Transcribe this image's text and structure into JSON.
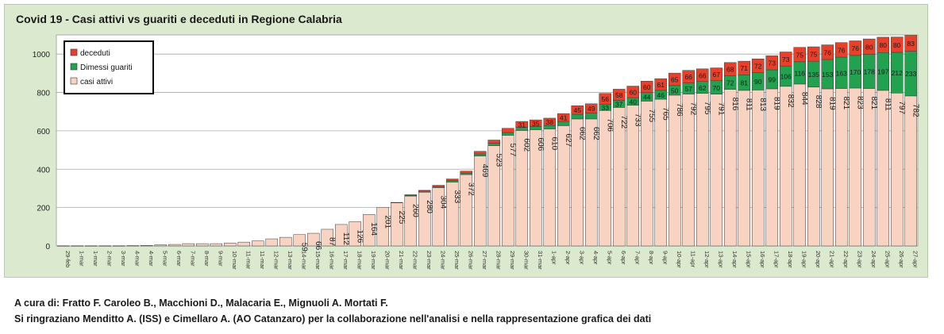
{
  "chart_data": {
    "type": "bar",
    "stacked": true,
    "title": "Covid 19 - Casi attivi vs guariti e deceduti in Regione Calabria",
    "xlabel": "",
    "ylabel": "",
    "ylim": [
      0,
      1100
    ],
    "yticks": [
      0,
      200,
      400,
      600,
      800,
      1000
    ],
    "grid": true,
    "legend_position": "top-left",
    "categories": [
      "29-feb",
      "1-mar",
      "1-mar",
      "2-mar",
      "3-mar",
      "4-mar",
      "4-mar",
      "5-mar",
      "6-mar",
      "7-mar",
      "8-mar",
      "9-mar",
      "10-mar",
      "11-mar",
      "11-mar",
      "12-mar",
      "13-mar",
      "14-mar",
      "15-mar",
      "16-mar",
      "17-mar",
      "18-mar",
      "19-mar",
      "20-mar",
      "21-mar",
      "22-mar",
      "23-mar",
      "24-mar",
      "25-mar",
      "26-mar",
      "27-mar",
      "28-mar",
      "29-mar",
      "30-mar",
      "31-mar",
      "1-apr",
      "2-apr",
      "3-apr",
      "4-apr",
      "5-apr",
      "6-apr",
      "7-apr",
      "8-apr",
      "9-apr",
      "10-apr",
      "11-apr",
      "12-apr",
      "13-apr",
      "14-apr",
      "15-apr",
      "16-apr",
      "17-apr",
      "18-apr",
      "19-apr",
      "20-apr",
      "21-apr",
      "22-apr",
      "23-apr",
      "24-apr",
      "25-apr",
      "26-apr",
      "27-apr"
    ],
    "series": [
      {
        "name": "casi attivi",
        "color": "#f8d3c2",
        "values": [
          1,
          1,
          1,
          1,
          1,
          2,
          3,
          6,
          8,
          12,
          12,
          12,
          15,
          20,
          26,
          37,
          45,
          59,
          66,
          87,
          112,
          126,
          164,
          201,
          225,
          260,
          280,
          304,
          333,
          372,
          469,
          523,
          577,
          602,
          606,
          610,
          627,
          662,
          662,
          706,
          722,
          733,
          755,
          765,
          786,
          792,
          795,
          791,
          816,
          811,
          813,
          819,
          832,
          844,
          828,
          819,
          821,
          823,
          821,
          811,
          797,
          782
        ]
      },
      {
        "name": "Dimessi guariti",
        "color": "#22a24e",
        "values": [
          0,
          0,
          0,
          0,
          0,
          0,
          0,
          0,
          0,
          0,
          0,
          0,
          0,
          0,
          0,
          0,
          0,
          0,
          0,
          0,
          0,
          0,
          0,
          0,
          0,
          4,
          6,
          6,
          8,
          8,
          10,
          12,
          14,
          16,
          16,
          18,
          22,
          24,
          30,
          33,
          37,
          40,
          44,
          46,
          50,
          57,
          62,
          70,
          72,
          81,
          90,
          99,
          106,
          116,
          135,
          153,
          163,
          170,
          178,
          197,
          212,
          233
        ]
      },
      {
        "name": "deceduti",
        "color": "#e8412b",
        "values": [
          0,
          0,
          0,
          0,
          0,
          0,
          0,
          0,
          0,
          0,
          0,
          0,
          0,
          0,
          0,
          0,
          0,
          0,
          0,
          0,
          0,
          0,
          0,
          0,
          2,
          3,
          4,
          6,
          8,
          10,
          14,
          17,
          22,
          31,
          35,
          38,
          41,
          45,
          49,
          56,
          58,
          60,
          60,
          61,
          65,
          66,
          66,
          67,
          68,
          71,
          72,
          73,
          73,
          75,
          75,
          76,
          76,
          76,
          80,
          80,
          80,
          83
        ]
      }
    ],
    "shown_labels": {
      "casi attivi": [
        null,
        null,
        null,
        null,
        null,
        null,
        null,
        null,
        null,
        null,
        null,
        null,
        null,
        null,
        null,
        null,
        null,
        59,
        66,
        87,
        112,
        126,
        164,
        201,
        225,
        260,
        280,
        304,
        333,
        372,
        469,
        523,
        577,
        602,
        606,
        610,
        627,
        662,
        662,
        706,
        722,
        733,
        755,
        765,
        786,
        792,
        795,
        791,
        816,
        811,
        813,
        819,
        832,
        844,
        828,
        819,
        821,
        823,
        821,
        811,
        797,
        782
      ],
      "Dimessi guariti": [
        null,
        null,
        null,
        null,
        null,
        null,
        null,
        null,
        null,
        null,
        null,
        null,
        null,
        null,
        null,
        null,
        null,
        null,
        null,
        null,
        null,
        null,
        null,
        null,
        null,
        null,
        null,
        null,
        null,
        null,
        null,
        null,
        null,
        null,
        null,
        null,
        null,
        null,
        null,
        33,
        37,
        40,
        44,
        46,
        50,
        57,
        62,
        70,
        72,
        81,
        90,
        99,
        106,
        116,
        135,
        153,
        163,
        170,
        178,
        197,
        212,
        233
      ],
      "deceduti": [
        null,
        null,
        null,
        null,
        null,
        null,
        null,
        null,
        null,
        null,
        null,
        null,
        null,
        null,
        null,
        null,
        null,
        null,
        null,
        null,
        null,
        null,
        null,
        null,
        null,
        null,
        null,
        null,
        null,
        null,
        null,
        null,
        null,
        31,
        35,
        38,
        41,
        45,
        49,
        56,
        58,
        60,
        60,
        61,
        65,
        66,
        66,
        67,
        68,
        71,
        72,
        73,
        73,
        75,
        75,
        76,
        76,
        76,
        80,
        80,
        80,
        83
      ]
    }
  },
  "credits": {
    "line1": "A cura di: Fratto F. Caroleo B., Macchioni D., Malacaria E., Mignuoli A. Mortati F.",
    "line2": "Si ringraziano Menditto A. (ISS) e Cimellaro A. (AO Catanzaro) per la collaborazione nell'analisi e nella rappresentazione grafica dei dati"
  }
}
